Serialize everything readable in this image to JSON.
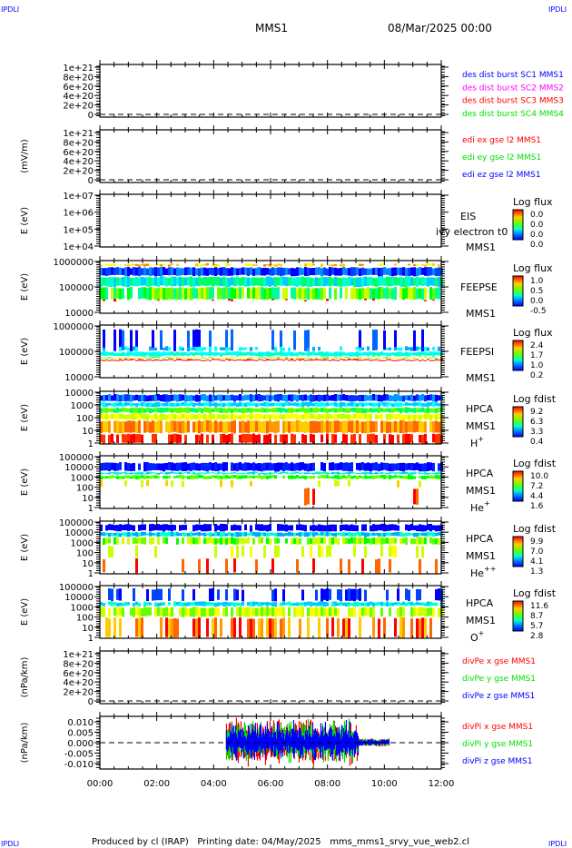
{
  "header": {
    "corner_tl": "IPDLI",
    "corner_tr": "IPDLI",
    "corner_bl": "IPDLI",
    "corner_br": "IPDLI",
    "spacecraft": "MMS1",
    "date": "08/Mar/2025 00:00"
  },
  "footer": {
    "text": "Produced by cl (IRAP)   Printing date: 04/May/2025   mms_mms1_srvy_vue_web2.cl"
  },
  "colors": {
    "blue": "#0000ff",
    "magenta": "#ff00ff",
    "red": "#ff0000",
    "green": "#00e000"
  },
  "chart_data": [
    {
      "type": "line",
      "ylabel": "",
      "yticks": [
        "1e+21",
        "8e+20",
        "6e+20",
        "4e+20",
        "2e+20",
        "0"
      ],
      "ylim": [
        0,
        1e+21
      ],
      "legend": [
        {
          "label": "des dist burst SC1 MMS1",
          "color": "#0000ff"
        },
        {
          "label": "des dist burst SC2 MMS2",
          "color": "#ff00ff"
        },
        {
          "label": "des dist burst SC3 MMS3",
          "color": "#ff0000"
        },
        {
          "label": "des dist burst SC4 MMS4",
          "color": "#00e000"
        }
      ],
      "series": []
    },
    {
      "type": "line",
      "ylabel": "(mV/m)",
      "yticks": [
        "1e+21",
        "8e+20",
        "6e+20",
        "4e+20",
        "2e+20",
        "0"
      ],
      "ylim": [
        0,
        1e+21
      ],
      "legend": [
        {
          "label": "edi ex gse l2 MMS1",
          "color": "#ff0000"
        },
        {
          "label": "edi ey gse l2 MMS1",
          "color": "#00e000"
        },
        {
          "label": "edi ez gse l2 MMS1",
          "color": "#0000ff"
        }
      ],
      "series": []
    },
    {
      "type": "heatmap",
      "ylabel": "E (eV)",
      "yticks": [
        "1e+07",
        "1e+06",
        "1e+05",
        "1e+04"
      ],
      "ylim": [
        10000.0,
        10000000.0
      ],
      "instrument": "EIS",
      "overlay": "ivy electron t0",
      "spacecraft": "MMS1",
      "cbar_title": "Log flux",
      "cbar_ticks": [
        "0.0",
        "0.0",
        "0.0",
        "0.0"
      ]
    },
    {
      "type": "heatmap",
      "ylabel": "E (eV)",
      "yticks": [
        "1000000",
        "100000",
        "10000"
      ],
      "ylim": [
        10000.0,
        1000000.0
      ],
      "instrument": "FEEPSE",
      "spacecraft": "MMS1",
      "cbar_title": "Log flux",
      "cbar_ticks": [
        "1.0",
        "0.5",
        "0.0",
        "-0.5"
      ]
    },
    {
      "type": "heatmap",
      "ylabel": "E (eV)",
      "yticks": [
        "1000000",
        "100000",
        "10000"
      ],
      "ylim": [
        10000.0,
        1000000.0
      ],
      "instrument": "FEEPSI",
      "spacecraft": "MMS1",
      "cbar_title": "Log flux",
      "cbar_ticks": [
        "2.4",
        "1.7",
        "1.0",
        "0.2"
      ]
    },
    {
      "type": "heatmap",
      "ylabel": "E (eV)",
      "yticks": [
        "10000",
        "1000",
        "100",
        "10",
        "1"
      ],
      "ylim": [
        1,
        10000.0
      ],
      "instrument": "HPCA",
      "spacecraft": "MMS1",
      "species": "H",
      "charge": "+",
      "cbar_title": "Log fdist",
      "cbar_ticks": [
        "9.2",
        "6.3",
        "3.3",
        "0.4"
      ]
    },
    {
      "type": "heatmap",
      "ylabel": "E (eV)",
      "yticks": [
        "100000",
        "10000",
        "1000",
        "100",
        "10",
        "1"
      ],
      "ylim": [
        1,
        100000.0
      ],
      "instrument": "HPCA",
      "spacecraft": "MMS1",
      "species": "He",
      "charge": "+",
      "cbar_title": "Log fdist",
      "cbar_ticks": [
        "10.0",
        "7.2",
        "4.4",
        "1.6"
      ]
    },
    {
      "type": "heatmap",
      "ylabel": "E (eV)",
      "yticks": [
        "100000",
        "10000",
        "1000",
        "100",
        "10",
        "1"
      ],
      "ylim": [
        1,
        100000.0
      ],
      "instrument": "HPCA",
      "spacecraft": "MMS1",
      "species": "He",
      "charge": "++",
      "cbar_title": "Log fdist",
      "cbar_ticks": [
        "9.9",
        "7.0",
        "4.1",
        "1.3"
      ]
    },
    {
      "type": "heatmap",
      "ylabel": "E (eV)",
      "yticks": [
        "100000",
        "10000",
        "1000",
        "100",
        "10",
        "1"
      ],
      "ylim": [
        1,
        100000.0
      ],
      "instrument": "HPCA",
      "spacecraft": "MMS1",
      "species": "O",
      "charge": "+",
      "cbar_title": "Log fdist",
      "cbar_ticks": [
        "11.6",
        "8.7",
        "5.7",
        "2.8"
      ]
    },
    {
      "type": "line",
      "ylabel": "(nPa/km)",
      "yticks": [
        "1e+21",
        "8e+20",
        "6e+20",
        "4e+20",
        "2e+20",
        "0"
      ],
      "ylim": [
        0,
        1e+21
      ],
      "legend": [
        {
          "label": "divPe x gse MMS1",
          "color": "#ff0000"
        },
        {
          "label": "divPe y gse MMS1",
          "color": "#00e000"
        },
        {
          "label": "divPe z gse MMS1",
          "color": "#0000ff"
        }
      ],
      "series": []
    },
    {
      "type": "line",
      "ylabel": "(nPa/km)",
      "yticks": [
        "0.010",
        "0.005",
        "0.000",
        "-0.005",
        "-0.010"
      ],
      "ylim": [
        -0.0125,
        0.0125
      ],
      "legend": [
        {
          "label": "divPi x gse MMS1",
          "color": "#ff0000"
        },
        {
          "label": "divPi y gse MMS1",
          "color": "#00e000"
        },
        {
          "label": "divPi z gse MMS1",
          "color": "#0000ff"
        }
      ],
      "data_time_range": [
        "04:27",
        "10:10"
      ],
      "approx_amplitude": 0.01
    }
  ],
  "xaxis": {
    "ticks": [
      "00:00",
      "02:00",
      "04:00",
      "06:00",
      "08:00",
      "10:00",
      "12:00"
    ],
    "range_hours": [
      0,
      12
    ]
  }
}
